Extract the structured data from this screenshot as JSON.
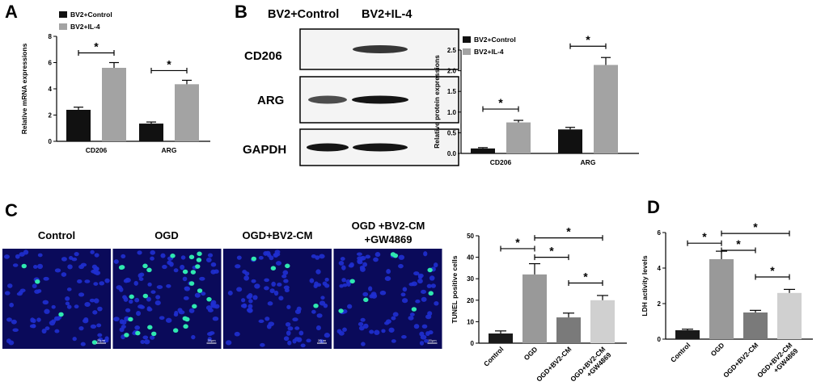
{
  "panels": {
    "a": "A",
    "b": "B",
    "c": "C",
    "d": "D"
  },
  "colors": {
    "control": "#111111",
    "il4": "#a3a3a3",
    "c_control": "#1a1a1a",
    "c_ogd": "#999999",
    "c_ogd_cm": "#7a7a7a",
    "c_ogd_cm_gw": "#d0d0d0",
    "micro_bg": "#0a0a5a",
    "nucleus": "#1f2fd0",
    "tunel": "#2fe8b0"
  },
  "blot": {
    "headers": [
      "BV2+Control",
      "BV2+IL-4"
    ],
    "rows": [
      "CD206",
      "ARG",
      "GAPDH"
    ]
  },
  "micro": {
    "labels": [
      "Control",
      "OGD",
      "OGD+BV2-CM",
      "OGD +BV2-CM",
      "+GW4869"
    ],
    "scale_bar": "20μm",
    "positive_counts": [
      4,
      26,
      4,
      8
    ]
  },
  "chart_data": [
    {
      "id": "A",
      "type": "bar",
      "ylabel": "Relative mRNA expressions",
      "ylim": [
        0,
        8
      ],
      "yticks": [
        0,
        2,
        4,
        6,
        8
      ],
      "categories": [
        "CD206",
        "ARG"
      ],
      "legend": "top-left",
      "series": [
        {
          "name": "BV2+Control",
          "values": [
            2.4,
            1.35
          ],
          "errors": [
            0.2,
            0.12
          ]
        },
        {
          "name": "BV2+IL-4",
          "values": [
            5.6,
            4.35
          ],
          "errors": [
            0.4,
            0.3
          ]
        }
      ],
      "significance": [
        {
          "category": 0,
          "label": "*"
        },
        {
          "category": 1,
          "label": "*"
        }
      ]
    },
    {
      "id": "B",
      "type": "bar",
      "ylabel": "Relative protein expressions",
      "ylim": [
        0,
        2.5
      ],
      "yticks": [
        "0.0",
        "0.5",
        "1.0",
        "1.5",
        "2.0",
        "2.5"
      ],
      "categories": [
        "CD206",
        "ARG"
      ],
      "legend": "top-left",
      "series": [
        {
          "name": "BV2+Control",
          "values": [
            0.12,
            0.58
          ],
          "errors": [
            0.02,
            0.05
          ]
        },
        {
          "name": "BV2+IL-4",
          "values": [
            0.75,
            2.14
          ],
          "errors": [
            0.05,
            0.18
          ]
        }
      ],
      "significance": [
        {
          "category": 0,
          "label": "*"
        },
        {
          "category": 1,
          "label": "*"
        }
      ]
    },
    {
      "id": "C",
      "type": "bar",
      "ylabel": "TUNEL positive cells",
      "ylim": [
        0,
        50
      ],
      "yticks": [
        0,
        10,
        20,
        30,
        40,
        50
      ],
      "categories": [
        "Control",
        "OGD",
        "OGD+BV2-CM",
        "OGD+BV2-CM+GW4869"
      ],
      "category_lines": [
        [
          "Control"
        ],
        [
          "OGD"
        ],
        [
          "OGD+BV2-CM"
        ],
        [
          "OGD+BV2-CM",
          "+GW4869"
        ]
      ],
      "values": [
        4.5,
        32,
        12,
        20
      ],
      "errors": [
        1.2,
        5,
        2,
        2.2
      ],
      "significance": [
        {
          "from": 0,
          "to": 1,
          "label": "*",
          "level": 44
        },
        {
          "from": 1,
          "to": 2,
          "label": "*",
          "level": 40
        },
        {
          "from": 1,
          "to": 3,
          "label": "*",
          "level": 49
        },
        {
          "from": 2,
          "to": 3,
          "label": "*",
          "level": 28
        }
      ]
    },
    {
      "id": "D",
      "type": "bar",
      "ylabel": "LDH activity levels",
      "ylim": [
        0,
        6
      ],
      "yticks": [
        0,
        2,
        4,
        6
      ],
      "categories": [
        "Control",
        "OGD",
        "OGD+BV2-CM",
        "OGD+BV2-CM+GW4869"
      ],
      "category_lines": [
        [
          "Control"
        ],
        [
          "OGD"
        ],
        [
          "OGD+BV2-CM"
        ],
        [
          "OGD+BV2-CM",
          "+GW4869"
        ]
      ],
      "values": [
        0.5,
        4.5,
        1.5,
        2.6
      ],
      "errors": [
        0.06,
        0.45,
        0.12,
        0.2
      ],
      "significance": [
        {
          "from": 0,
          "to": 1,
          "label": "*",
          "level": 5.4
        },
        {
          "from": 1,
          "to": 2,
          "label": "*",
          "level": 5.0
        },
        {
          "from": 1,
          "to": 3,
          "label": "*",
          "level": 5.95
        },
        {
          "from": 2,
          "to": 3,
          "label": "*",
          "level": 3.5
        }
      ]
    }
  ]
}
